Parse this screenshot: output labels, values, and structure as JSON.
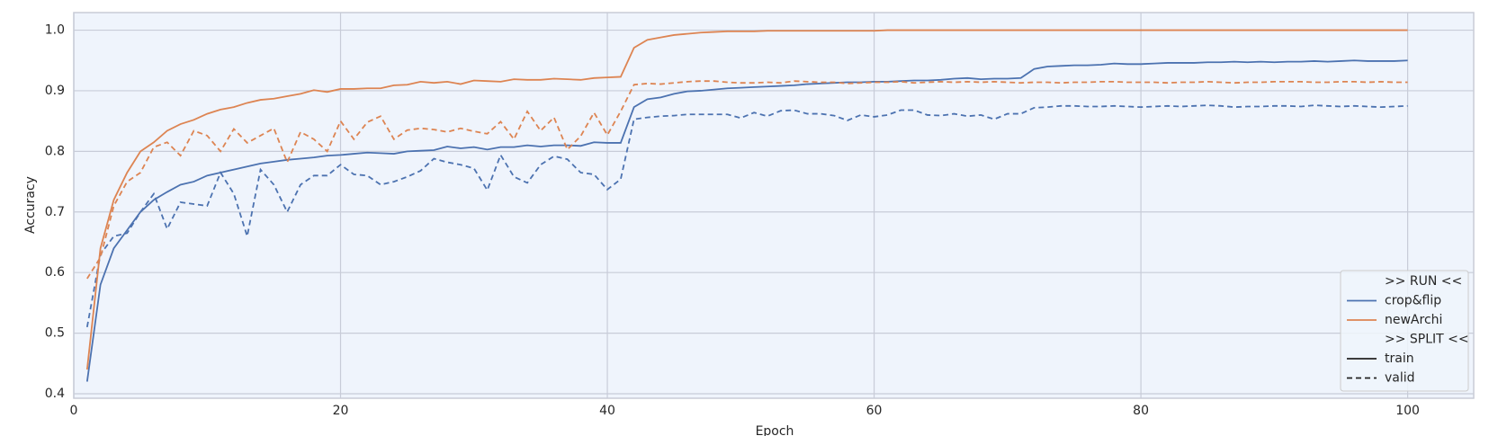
{
  "chart_data": {
    "type": "line",
    "xlabel": "Epoch",
    "ylabel": "Accuracy",
    "x": [
      1,
      2,
      3,
      4,
      5,
      6,
      7,
      8,
      9,
      10,
      11,
      12,
      13,
      14,
      15,
      16,
      17,
      18,
      19,
      20,
      21,
      22,
      23,
      24,
      25,
      26,
      27,
      28,
      29,
      30,
      31,
      32,
      33,
      34,
      35,
      36,
      37,
      38,
      39,
      40,
      41,
      42,
      43,
      44,
      45,
      46,
      47,
      48,
      49,
      50,
      51,
      52,
      53,
      54,
      55,
      56,
      57,
      58,
      59,
      60,
      61,
      62,
      63,
      64,
      65,
      66,
      67,
      68,
      69,
      70,
      71,
      72,
      73,
      74,
      75,
      76,
      77,
      78,
      79,
      80,
      81,
      82,
      83,
      84,
      85,
      86,
      87,
      88,
      89,
      90,
      91,
      92,
      93,
      94,
      95,
      96,
      97,
      98,
      99,
      100
    ],
    "splits": [
      {
        "name": "train",
        "dash": "none"
      },
      {
        "name": "valid",
        "dash": "6 4"
      }
    ],
    "series": [
      {
        "name": "crop&flip",
        "color": "#4c72b0",
        "values": [
          [
            0.42,
            0.58,
            0.64,
            0.67,
            0.7,
            0.72,
            0.733,
            0.745,
            0.75,
            0.76,
            0.765,
            0.77,
            0.775,
            0.78,
            0.783,
            0.786,
            0.788,
            0.79,
            0.793,
            0.794,
            0.796,
            0.798,
            0.797,
            0.796,
            0.8,
            0.801,
            0.802,
            0.808,
            0.805,
            0.807,
            0.803,
            0.807,
            0.807,
            0.81,
            0.808,
            0.81,
            0.81,
            0.809,
            0.815,
            0.814,
            0.814,
            0.873,
            0.886,
            0.889,
            0.895,
            0.899,
            0.9,
            0.902,
            0.904,
            0.905,
            0.906,
            0.907,
            0.908,
            0.909,
            0.911,
            0.912,
            0.913,
            0.914,
            0.914,
            0.915,
            0.915,
            0.916,
            0.917,
            0.917,
            0.918,
            0.92,
            0.921,
            0.919,
            0.92,
            0.92,
            0.921,
            0.936,
            0.94,
            0.941,
            0.942,
            0.942,
            0.943,
            0.945,
            0.944,
            0.944,
            0.945,
            0.946,
            0.946,
            0.946,
            0.947,
            0.947,
            0.948,
            0.947,
            0.948,
            0.947,
            0.948,
            0.948,
            0.949,
            0.948,
            0.949,
            0.95,
            0.949,
            0.949,
            0.949,
            0.95
          ],
          [
            0.51,
            0.63,
            0.66,
            0.665,
            0.7,
            0.73,
            0.672,
            0.716,
            0.713,
            0.71,
            0.765,
            0.73,
            0.66,
            0.77,
            0.745,
            0.7,
            0.745,
            0.76,
            0.76,
            0.778,
            0.762,
            0.76,
            0.745,
            0.75,
            0.758,
            0.768,
            0.788,
            0.782,
            0.778,
            0.772,
            0.736,
            0.794,
            0.758,
            0.748,
            0.778,
            0.792,
            0.787,
            0.765,
            0.762,
            0.737,
            0.754,
            0.853,
            0.856,
            0.858,
            0.859,
            0.861,
            0.861,
            0.861,
            0.861,
            0.855,
            0.864,
            0.858,
            0.867,
            0.868,
            0.862,
            0.862,
            0.859,
            0.851,
            0.86,
            0.857,
            0.86,
            0.868,
            0.868,
            0.86,
            0.859,
            0.862,
            0.858,
            0.86,
            0.853,
            0.862,
            0.862,
            0.872,
            0.873,
            0.875,
            0.875,
            0.874,
            0.874,
            0.875,
            0.874,
            0.873,
            0.874,
            0.875,
            0.874,
            0.875,
            0.876,
            0.875,
            0.873,
            0.874,
            0.874,
            0.875,
            0.875,
            0.874,
            0.876,
            0.875,
            0.874,
            0.875,
            0.874,
            0.873,
            0.874,
            0.875
          ]
        ]
      },
      {
        "name": "newArchi",
        "color": "#dd8452",
        "values": [
          [
            0.44,
            0.64,
            0.72,
            0.765,
            0.8,
            0.815,
            0.834,
            0.845,
            0.852,
            0.862,
            0.869,
            0.873,
            0.88,
            0.885,
            0.887,
            0.891,
            0.895,
            0.901,
            0.898,
            0.903,
            0.903,
            0.904,
            0.904,
            0.909,
            0.91,
            0.915,
            0.913,
            0.915,
            0.911,
            0.917,
            0.916,
            0.915,
            0.919,
            0.918,
            0.918,
            0.92,
            0.919,
            0.918,
            0.921,
            0.922,
            0.923,
            0.971,
            0.984,
            0.988,
            0.992,
            0.994,
            0.996,
            0.997,
            0.998,
            0.998,
            0.998,
            0.999,
            0.999,
            0.999,
            0.999,
            0.999,
            0.999,
            0.999,
            0.999,
            0.999,
            1,
            1,
            1,
            1,
            1,
            1,
            1,
            1,
            1,
            1,
            1,
            1,
            1,
            1,
            1,
            1,
            1,
            1,
            1,
            1,
            1,
            1,
            1,
            1,
            1,
            1,
            1,
            1,
            1,
            1,
            1,
            1,
            1,
            1,
            1,
            1,
            1,
            1,
            1,
            1
          ],
          [
            0.59,
            0.625,
            0.71,
            0.75,
            0.765,
            0.807,
            0.815,
            0.793,
            0.834,
            0.826,
            0.8,
            0.837,
            0.814,
            0.826,
            0.838,
            0.782,
            0.832,
            0.82,
            0.8,
            0.85,
            0.82,
            0.848,
            0.858,
            0.82,
            0.835,
            0.838,
            0.836,
            0.832,
            0.838,
            0.833,
            0.829,
            0.849,
            0.82,
            0.866,
            0.834,
            0.856,
            0.803,
            0.825,
            0.864,
            0.827,
            0.866,
            0.91,
            0.912,
            0.911,
            0.913,
            0.915,
            0.916,
            0.916,
            0.914,
            0.913,
            0.913,
            0.914,
            0.913,
            0.916,
            0.915,
            0.914,
            0.914,
            0.912,
            0.913,
            0.914,
            0.914,
            0.915,
            0.913,
            0.914,
            0.915,
            0.914,
            0.915,
            0.914,
            0.915,
            0.914,
            0.913,
            0.914,
            0.914,
            0.913,
            0.914,
            0.914,
            0.915,
            0.915,
            0.914,
            0.914,
            0.914,
            0.913,
            0.914,
            0.914,
            0.915,
            0.914,
            0.913,
            0.914,
            0.914,
            0.915,
            0.915,
            0.915,
            0.914,
            0.914,
            0.915,
            0.915,
            0.914,
            0.915,
            0.914,
            0.914
          ]
        ]
      }
    ],
    "xlim": [
      0,
      104.95
    ],
    "ylim": [
      0.3926,
      1.029
    ],
    "xticks": [
      0,
      20,
      40,
      60,
      80,
      100
    ],
    "yticks": [
      0.4,
      0.5,
      0.6,
      0.7,
      0.8,
      0.9,
      {
        "value": 1.0,
        "label": "1.0"
      }
    ],
    "grid": true,
    "legend": {
      "loc": "lower right",
      "run_title": ">> RUN <<",
      "split_title": ">> SPLIT <<"
    }
  }
}
